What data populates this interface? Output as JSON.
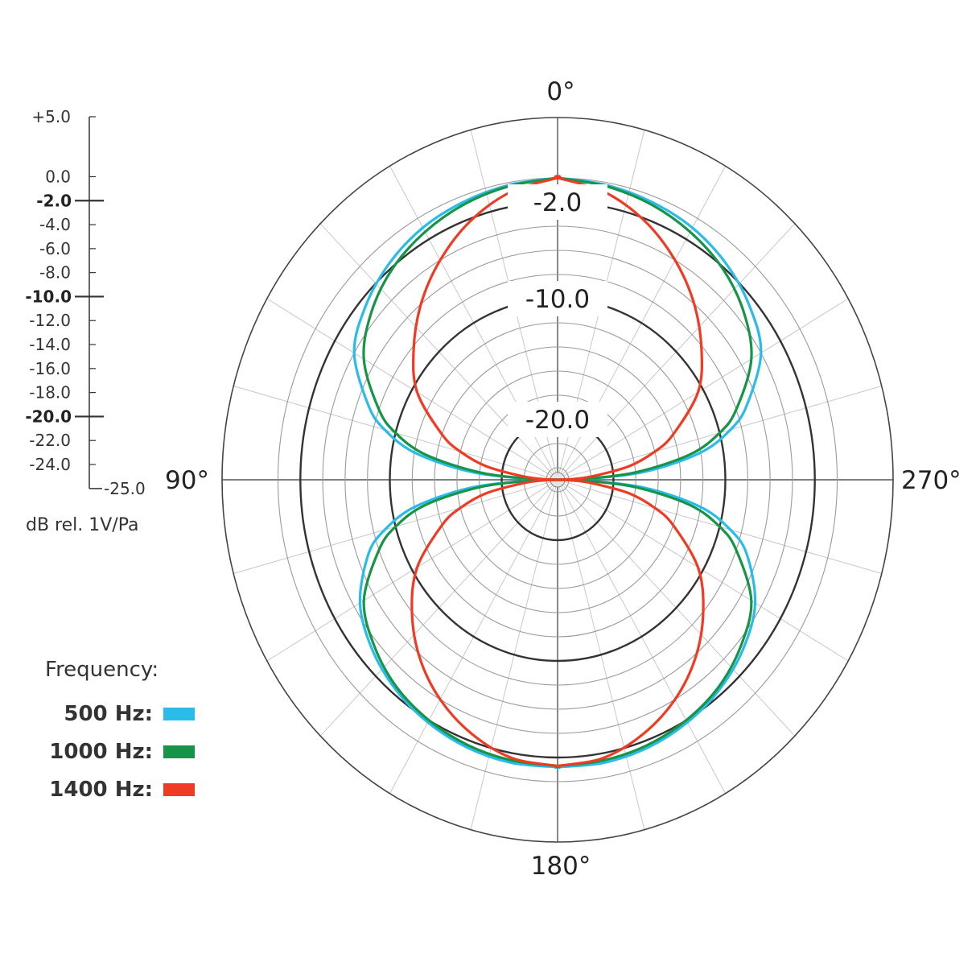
{
  "chart_data": {
    "type": "polar-line",
    "unit_label": "dB rel. 1V/Pa",
    "r_range_db": [
      -25.0,
      5.0
    ],
    "scale": {
      "ticks": [
        "+5.0",
        "0.0",
        "-2.0",
        "-4.0",
        "-6.0",
        "-8.0",
        "-10.0",
        "-12.0",
        "-14.0",
        "-16.0",
        "-18.0",
        "-20.0",
        "-22.0",
        "-24.0"
      ],
      "tick_values": [
        5,
        0,
        -2,
        -4,
        -6,
        -8,
        -10,
        -12,
        -14,
        -16,
        -18,
        -20,
        -22,
        -24
      ],
      "bold_ticks": [
        "-2.0",
        "-10.0",
        "-20.0"
      ],
      "min_label": "-25.0"
    },
    "rings_db": [
      5,
      0,
      -2,
      -4,
      -6,
      -8,
      -10,
      -12,
      -14,
      -16,
      -18,
      -20,
      -22,
      -24
    ],
    "bold_rings_db": [
      -2,
      -10,
      -20
    ],
    "ring_labels": [
      {
        "db": -2,
        "text": "-2.0"
      },
      {
        "db": -10,
        "text": "-10.0"
      },
      {
        "db": -20,
        "text": "-20.0"
      }
    ],
    "angle_labels": [
      {
        "angle": 0,
        "text": "0°"
      },
      {
        "angle": 90,
        "text": "90°"
      },
      {
        "angle": 180,
        "text": "180°"
      },
      {
        "angle": 270,
        "text": "270°"
      }
    ],
    "spokes_every_deg": 15,
    "legend": {
      "title": "Frequency:",
      "position": "bottom-left"
    },
    "series": [
      {
        "name": "500 Hz",
        "legend_label": "500 Hz:",
        "color": "#2bbbe8",
        "angles": [
          0,
          10,
          20,
          30,
          40,
          50,
          60,
          70,
          75,
          80,
          85,
          88,
          90,
          92,
          95,
          100,
          105,
          110,
          120,
          130,
          140,
          150,
          160,
          170,
          180
        ],
        "db": [
          0.0,
          -0.2,
          -0.5,
          -0.9,
          -1.6,
          -2.6,
          -4.0,
          -7.0,
          -9.0,
          -12.0,
          -17.0,
          -22.0,
          -25.0,
          -22.0,
          -17.0,
          -12.0,
          -9.0,
          -7.0,
          -4.6,
          -3.3,
          -2.4,
          -1.8,
          -1.4,
          -1.2,
          -1.2
        ]
      },
      {
        "name": "1000 Hz",
        "legend_label": "1000 Hz:",
        "color": "#179447",
        "angles": [
          0,
          10,
          20,
          30,
          40,
          50,
          60,
          70,
          75,
          80,
          85,
          88,
          90,
          92,
          95,
          100,
          105,
          110,
          120,
          130,
          140,
          150,
          160,
          170,
          180
        ],
        "db": [
          0.0,
          -0.3,
          -0.7,
          -1.3,
          -2.1,
          -3.3,
          -5.0,
          -8.0,
          -10.0,
          -13.0,
          -18.0,
          -22.5,
          -25.0,
          -22.5,
          -18.0,
          -13.0,
          -10.0,
          -8.0,
          -5.0,
          -3.6,
          -2.6,
          -2.0,
          -1.6,
          -1.4,
          -1.3
        ]
      },
      {
        "name": "1400 Hz",
        "legend_label": "1400 Hz:",
        "color": "#ee3b24",
        "angles": [
          0,
          10,
          20,
          30,
          40,
          50,
          60,
          70,
          75,
          80,
          85,
          88,
          90,
          92,
          95,
          100,
          105,
          110,
          120,
          130,
          140,
          150,
          160,
          170,
          180
        ],
        "db": [
          0.0,
          -0.8,
          -2.2,
          -4.0,
          -6.0,
          -8.2,
          -10.5,
          -14.0,
          -16.0,
          -18.5,
          -22.0,
          -24.0,
          -25.0,
          -24.0,
          -22.0,
          -18.5,
          -16.0,
          -14.0,
          -10.5,
          -8.0,
          -5.8,
          -4.0,
          -2.6,
          -1.6,
          -1.3
        ]
      }
    ]
  }
}
